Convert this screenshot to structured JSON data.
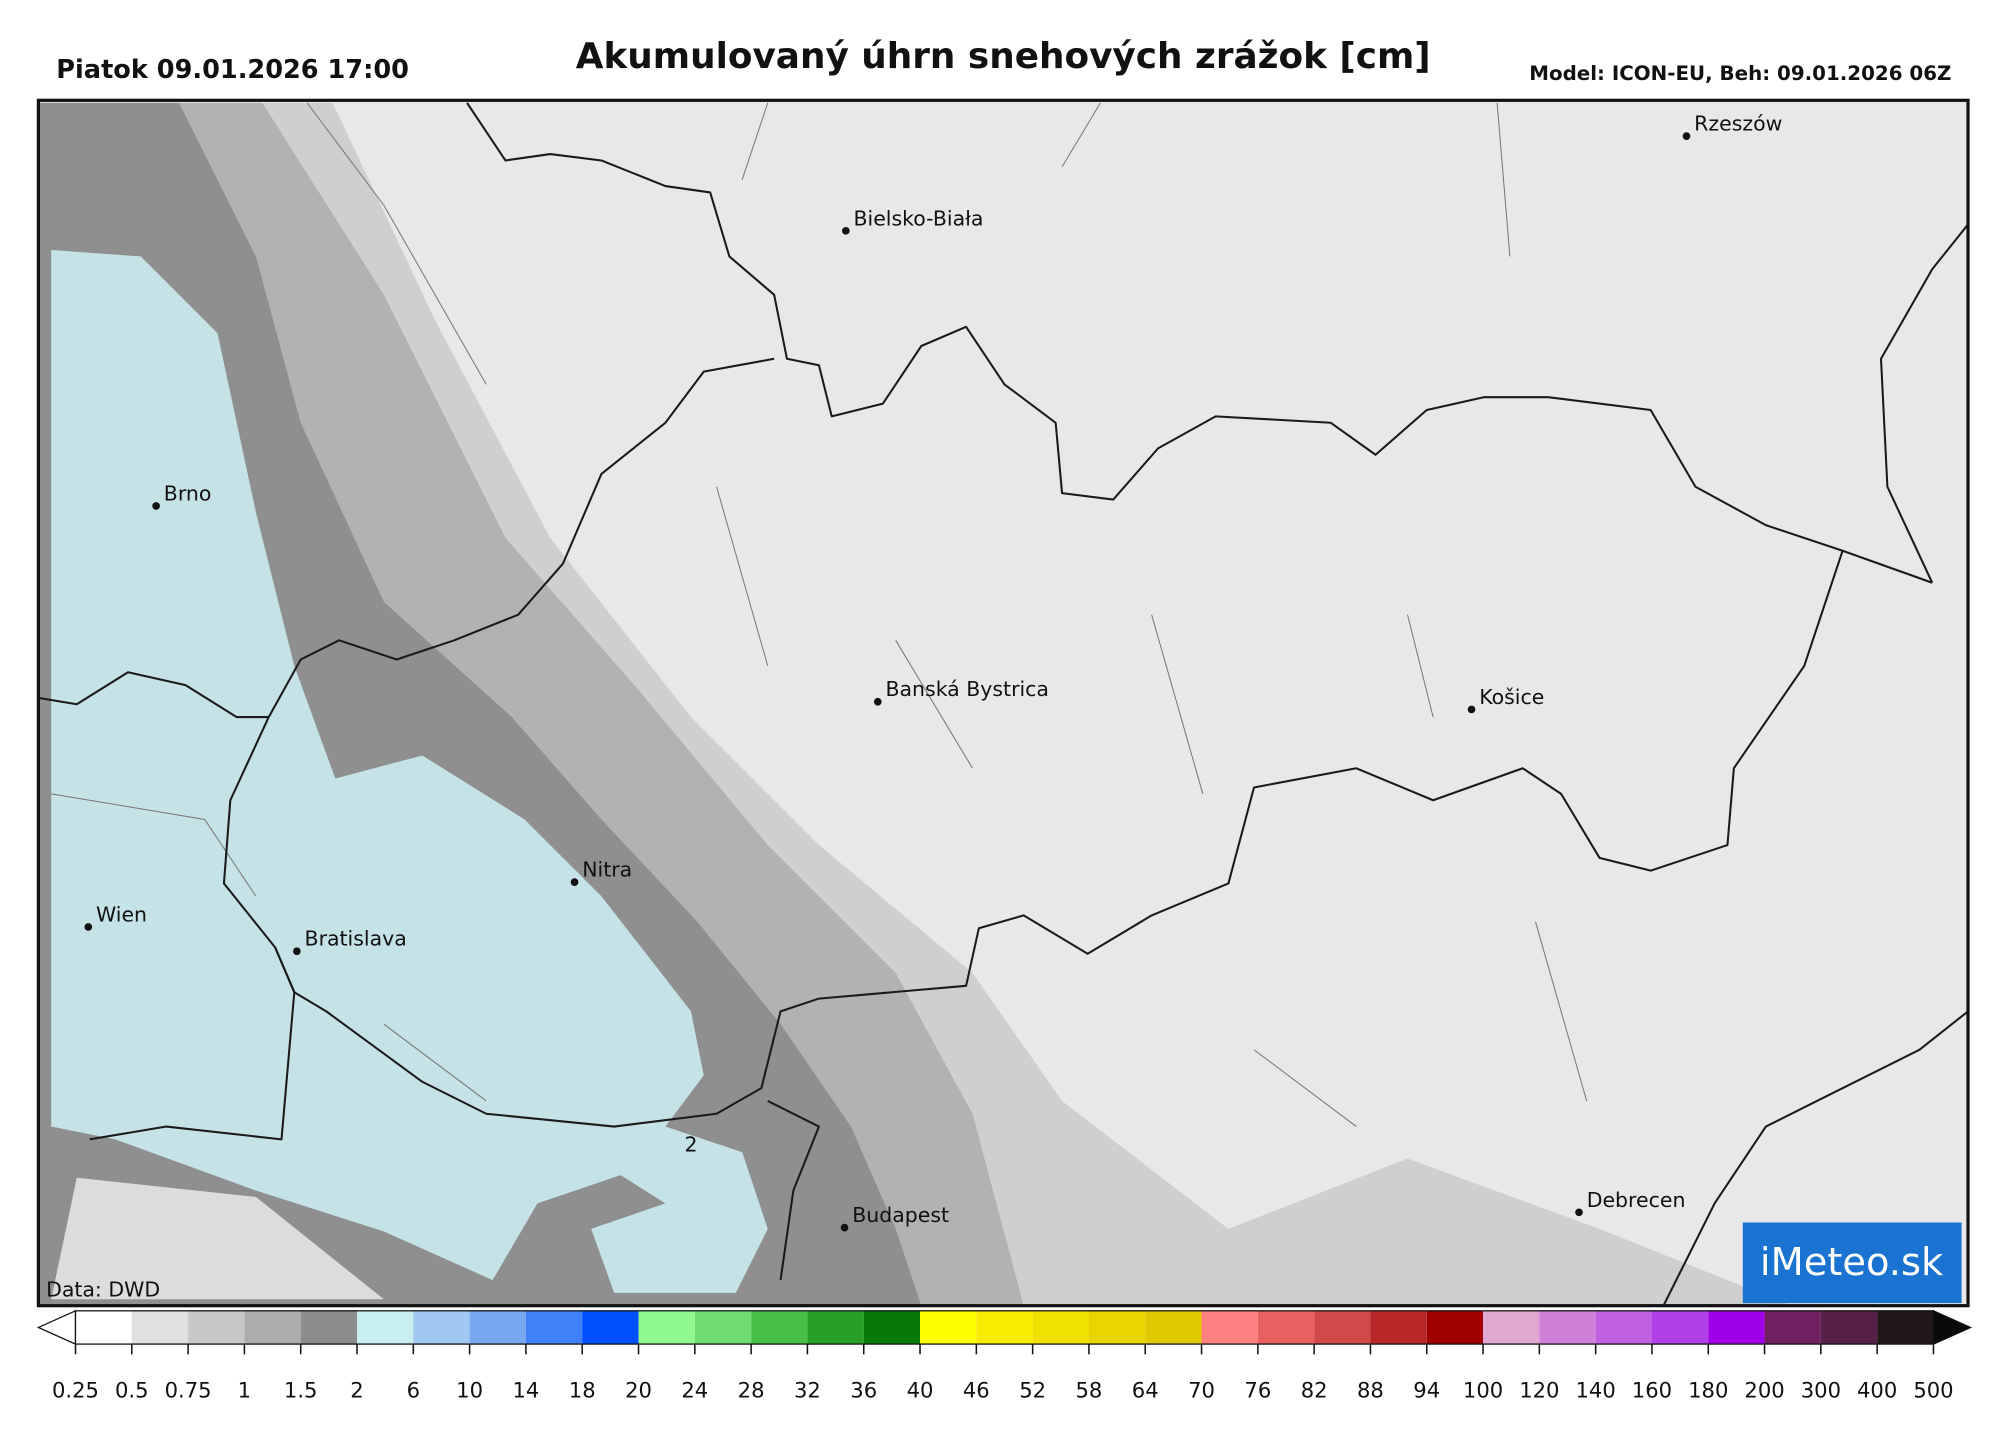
{
  "header": {
    "left": "Piatok 09.01.2026 17:00",
    "title": "Akumulovaný úhrn snehových zrážok [cm]",
    "right": "Model: ICON-EU, Beh: 09.01.2026 06Z"
  },
  "map": {
    "cities": [
      "Rzeszów",
      "Bielsko-Biała",
      "Brno",
      "Banská Bystrica",
      "Košice",
      "Nitra",
      "Wien",
      "Bratislava",
      "Budapest",
      "Debrecen"
    ],
    "contour_label": "2",
    "credit": "Data: DWD",
    "logo": "iMeteo.sk"
  },
  "colorbar": {
    "ticks": [
      0.25,
      0.5,
      0.75,
      1,
      1.5,
      2,
      6,
      10,
      14,
      18,
      20,
      24,
      28,
      32,
      36,
      40,
      46,
      52,
      58,
      64,
      70,
      76,
      82,
      88,
      94,
      100,
      120,
      140,
      160,
      180,
      200,
      300,
      400,
      500
    ],
    "colors": [
      "#ffffff",
      "#e0e0e0",
      "#c8c8c8",
      "#acacac",
      "#8c8c8c",
      "#c8eef0",
      "#a0c8f0",
      "#78a8f0",
      "#4080f8",
      "#0050ff",
      "#90f890",
      "#70dc70",
      "#48c048",
      "#28a028",
      "#087808",
      "#ffff00",
      "#f8ec00",
      "#f0e000",
      "#e8d400",
      "#e0c800",
      "#ff8080",
      "#e86060",
      "#d04848",
      "#b82828",
      "#a00000",
      "#e0a8d0",
      "#d080d8",
      "#c060e0",
      "#b040e8",
      "#a000e8",
      "#702060",
      "#582048",
      "#201818"
    ],
    "under_color": "#ffffff",
    "over_color": "#0a0a0a"
  }
}
